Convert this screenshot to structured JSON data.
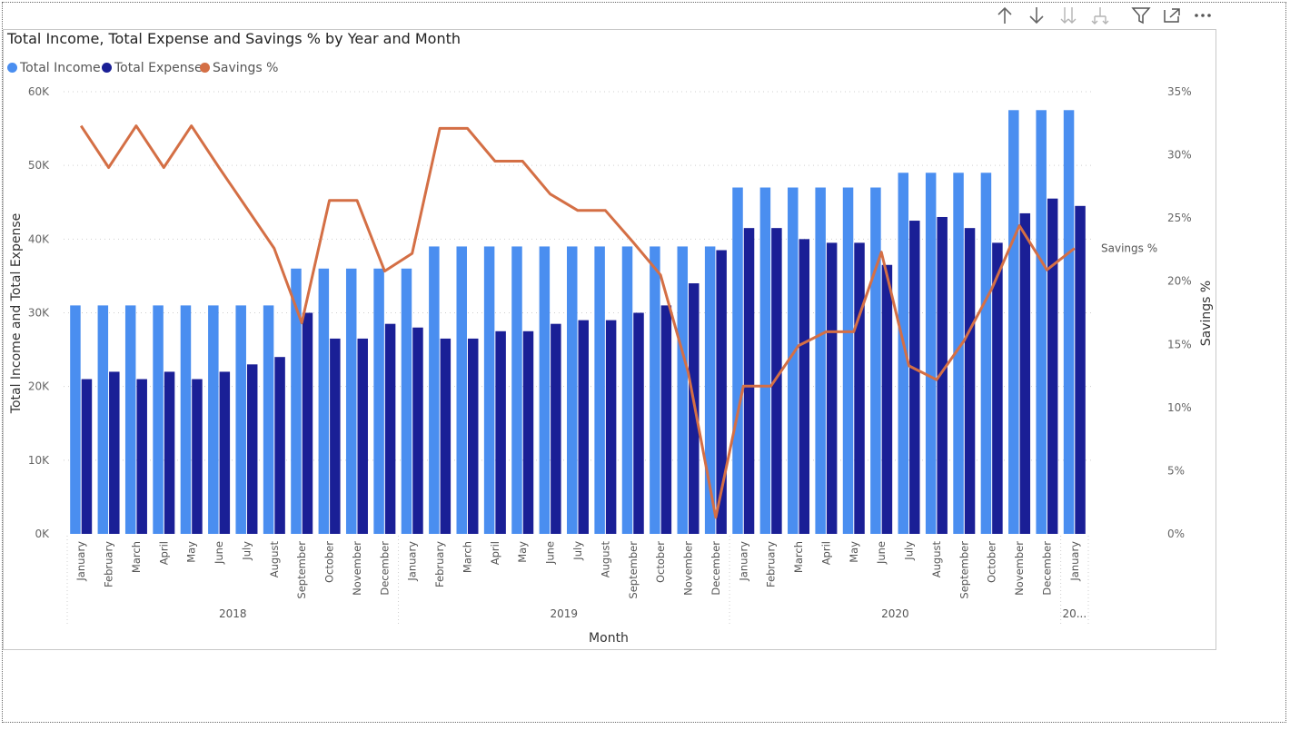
{
  "toolbar": {
    "icons": [
      "sort-ascending-icon",
      "sort-descending-icon",
      "expand-all-down-icon",
      "expand-down-icon",
      "filter-icon",
      "focus-mode-icon",
      "more-options-icon"
    ]
  },
  "chart_data": {
    "type": "bar",
    "title": "Total Income, Total Expense and Savings % by Year and Month",
    "xlabel": "Month",
    "ylabel": "Total Income and Total Expense",
    "y2label": "Savings %",
    "ylim": [
      0,
      60000
    ],
    "y2lim": [
      0,
      35
    ],
    "yticks": [
      "0K",
      "10K",
      "20K",
      "30K",
      "40K",
      "50K",
      "60K"
    ],
    "y2ticks": [
      "0%",
      "5%",
      "10%",
      "15%",
      "20%",
      "25%",
      "30%",
      "35%"
    ],
    "line_label": "Savings %",
    "legend_position": "top-left",
    "grid": true,
    "colors": {
      "income": "#4a8ef0",
      "expense": "#1a1f96",
      "savings": "#d46f45"
    },
    "categories": [
      "January",
      "February",
      "March",
      "April",
      "May",
      "June",
      "July",
      "August",
      "September",
      "October",
      "November",
      "December",
      "January",
      "February",
      "March",
      "April",
      "May",
      "June",
      "July",
      "August",
      "September",
      "October",
      "November",
      "December",
      "January",
      "February",
      "March",
      "April",
      "May",
      "June",
      "July",
      "August",
      "September",
      "October",
      "November",
      "December",
      "January"
    ],
    "years": [
      {
        "label": "2018",
        "count": 12
      },
      {
        "label": "2019",
        "count": 12
      },
      {
        "label": "2020",
        "count": 12
      },
      {
        "label": "20...",
        "count": 1
      }
    ],
    "series": [
      {
        "name": "Total Income",
        "type": "bar",
        "values": [
          31000,
          31000,
          31000,
          31000,
          31000,
          31000,
          31000,
          31000,
          36000,
          36000,
          36000,
          36000,
          36000,
          39000,
          39000,
          39000,
          39000,
          39000,
          39000,
          39000,
          39000,
          39000,
          39000,
          39000,
          47000,
          47000,
          47000,
          47000,
          47000,
          47000,
          49000,
          49000,
          49000,
          49000,
          57500,
          57500,
          57500
        ]
      },
      {
        "name": "Total Expense",
        "type": "bar",
        "values": [
          21000,
          22000,
          21000,
          22000,
          21000,
          22000,
          23000,
          24000,
          30000,
          26500,
          26500,
          28500,
          28000,
          26500,
          26500,
          27500,
          27500,
          28500,
          29000,
          29000,
          30000,
          31000,
          34000,
          38500,
          41500,
          41500,
          40000,
          39500,
          39500,
          36500,
          42500,
          43000,
          41500,
          39500,
          43500,
          45500,
          44500
        ]
      },
      {
        "name": "Savings %",
        "type": "line",
        "values": [
          32.3,
          29.0,
          32.3,
          29.0,
          32.3,
          29.0,
          25.8,
          22.6,
          16.7,
          26.4,
          26.4,
          20.8,
          22.2,
          32.1,
          32.1,
          29.5,
          29.5,
          26.9,
          25.6,
          25.6,
          23.1,
          20.5,
          12.8,
          1.3,
          11.7,
          11.7,
          14.9,
          16.0,
          16.0,
          22.3,
          13.3,
          12.2,
          15.3,
          19.4,
          24.4,
          20.9,
          22.6
        ]
      }
    ]
  }
}
